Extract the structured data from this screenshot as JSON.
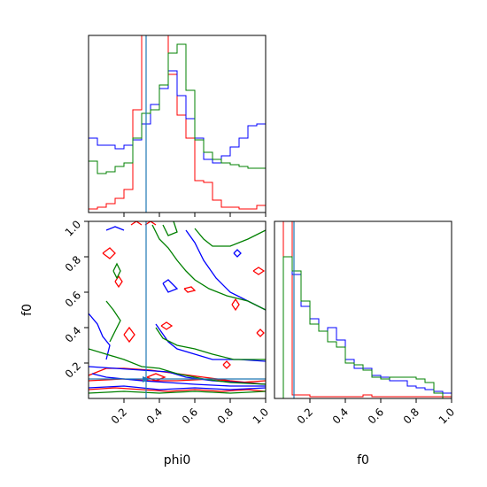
{
  "chart_data": {
    "type": "corner",
    "parameters": [
      "phi0",
      "f0"
    ],
    "axis_labels": {
      "x_bottom_left": "phi0",
      "x_bottom_right": "f0",
      "y_left": "f0"
    },
    "ranges": {
      "phi0": [
        0.0,
        1.0
      ],
      "f0": [
        0.0,
        1.0
      ]
    },
    "tick_labels": {
      "phi0": [
        "0.2",
        "0.4",
        "0.6",
        "0.8",
        "1.0"
      ],
      "f0": [
        "0.2",
        "0.4",
        "0.6",
        "0.8",
        "1.0"
      ]
    },
    "truth": {
      "phi0": 0.32,
      "f0": 0.11,
      "color": "#1f77b4"
    },
    "colors": {
      "red": "#ff0000",
      "blue": "#0000ff",
      "green": "#008000"
    },
    "hist_phi0": {
      "bins": 20,
      "ymax": 1.0,
      "series": [
        {
          "color": "red",
          "values": [
            0.02,
            0.03,
            0.05,
            0.08,
            0.13,
            0.58,
            1.05,
            1.2,
            1.05,
            0.78,
            0.55,
            0.42,
            0.18,
            0.17,
            0.07,
            0.03,
            0.03,
            0.02,
            0.02,
            0.04
          ]
        },
        {
          "color": "blue",
          "values": [
            0.42,
            0.38,
            0.38,
            0.36,
            0.38,
            0.41,
            0.5,
            0.61,
            0.7,
            0.8,
            0.66,
            0.53,
            0.42,
            0.3,
            0.28,
            0.32,
            0.37,
            0.42,
            0.49,
            0.5
          ]
        },
        {
          "color": "green",
          "values": [
            0.29,
            0.22,
            0.23,
            0.26,
            0.28,
            0.42,
            0.56,
            0.58,
            0.72,
            0.9,
            0.95,
            0.69,
            0.41,
            0.34,
            0.3,
            0.28,
            0.27,
            0.26,
            0.25,
            0.25
          ]
        }
      ]
    },
    "hist_f0": {
      "bins": 20,
      "ymax": 1.0,
      "series": [
        {
          "color": "red",
          "values": [
            0.0,
            1.25,
            0.02,
            0.02,
            0.01,
            0.01,
            0.01,
            0.01,
            0.01,
            0.01,
            0.02,
            0.01,
            0.01,
            0.01,
            0.01,
            0.01,
            0.01,
            0.01,
            0.01,
            0.01
          ]
        },
        {
          "color": "blue",
          "values": [
            0.0,
            0.8,
            0.7,
            0.52,
            0.45,
            0.38,
            0.4,
            0.33,
            0.22,
            0.17,
            0.17,
            0.13,
            0.12,
            0.1,
            0.1,
            0.07,
            0.06,
            0.05,
            0.04,
            0.03
          ]
        },
        {
          "color": "green",
          "values": [
            0.0,
            0.8,
            0.72,
            0.55,
            0.42,
            0.38,
            0.32,
            0.29,
            0.2,
            0.19,
            0.16,
            0.12,
            0.11,
            0.12,
            0.12,
            0.12,
            0.11,
            0.09,
            0.03,
            0.0
          ]
        }
      ]
    },
    "contours": [
      {
        "color": "red",
        "points": [
          [
            0.0,
            0.13
          ],
          [
            0.1,
            0.17
          ],
          [
            0.2,
            0.17
          ],
          [
            0.35,
            0.16
          ],
          [
            0.5,
            0.14
          ],
          [
            0.65,
            0.12
          ],
          [
            0.8,
            0.1
          ],
          [
            1.0,
            0.08
          ]
        ]
      },
      {
        "color": "red",
        "points": [
          [
            0.0,
            0.05
          ],
          [
            0.15,
            0.06
          ],
          [
            0.3,
            0.05
          ],
          [
            0.45,
            0.04
          ],
          [
            0.6,
            0.05
          ],
          [
            0.75,
            0.04
          ],
          [
            0.9,
            0.05
          ],
          [
            1.0,
            0.04
          ]
        ]
      },
      {
        "color": "red",
        "points": [
          [
            0.0,
            0.1
          ],
          [
            0.2,
            0.11
          ],
          [
            0.35,
            0.1
          ],
          [
            0.5,
            0.1
          ],
          [
            0.7,
            0.11
          ],
          [
            0.85,
            0.09
          ],
          [
            1.0,
            0.1
          ]
        ]
      },
      {
        "color": "red",
        "points": [
          [
            0.2,
            0.36
          ],
          [
            0.23,
            0.4
          ],
          [
            0.26,
            0.36
          ],
          [
            0.23,
            0.32
          ],
          [
            0.2,
            0.36
          ]
        ]
      },
      {
        "color": "red",
        "points": [
          [
            0.08,
            0.82
          ],
          [
            0.12,
            0.85
          ],
          [
            0.15,
            0.82
          ],
          [
            0.12,
            0.79
          ],
          [
            0.08,
            0.82
          ]
        ]
      },
      {
        "color": "red",
        "points": [
          [
            0.15,
            0.66
          ],
          [
            0.17,
            0.69
          ],
          [
            0.19,
            0.66
          ],
          [
            0.17,
            0.63
          ],
          [
            0.15,
            0.66
          ]
        ]
      },
      {
        "color": "red",
        "points": [
          [
            0.41,
            0.41
          ],
          [
            0.44,
            0.43
          ],
          [
            0.47,
            0.41
          ],
          [
            0.44,
            0.39
          ],
          [
            0.41,
            0.41
          ]
        ]
      },
      {
        "color": "red",
        "points": [
          [
            0.81,
            0.53
          ],
          [
            0.83,
            0.56
          ],
          [
            0.85,
            0.53
          ],
          [
            0.83,
            0.5
          ],
          [
            0.81,
            0.53
          ]
        ]
      },
      {
        "color": "red",
        "points": [
          [
            0.93,
            0.72
          ],
          [
            0.96,
            0.74
          ],
          [
            0.99,
            0.72
          ],
          [
            0.96,
            0.7
          ],
          [
            0.93,
            0.72
          ]
        ]
      },
      {
        "color": "red",
        "points": [
          [
            0.54,
            0.62
          ],
          [
            0.58,
            0.63
          ],
          [
            0.6,
            0.61
          ],
          [
            0.56,
            0.6
          ],
          [
            0.54,
            0.62
          ]
        ]
      },
      {
        "color": "red",
        "points": [
          [
            0.33,
            0.12
          ],
          [
            0.38,
            0.14
          ],
          [
            0.43,
            0.12
          ],
          [
            0.38,
            0.1
          ],
          [
            0.33,
            0.12
          ]
        ]
      },
      {
        "color": "red",
        "points": [
          [
            0.24,
            0.98
          ],
          [
            0.27,
            1.0
          ],
          [
            0.3,
            0.98
          ]
        ]
      },
      {
        "color": "red",
        "points": [
          [
            0.32,
            0.98
          ],
          [
            0.35,
            1.0
          ],
          [
            0.38,
            0.98
          ]
        ]
      },
      {
        "color": "red",
        "points": [
          [
            0.76,
            0.19
          ],
          [
            0.78,
            0.21
          ],
          [
            0.8,
            0.19
          ],
          [
            0.78,
            0.17
          ],
          [
            0.76,
            0.19
          ]
        ]
      },
      {
        "color": "red",
        "points": [
          [
            0.95,
            0.37
          ],
          [
            0.97,
            0.39
          ],
          [
            0.99,
            0.37
          ],
          [
            0.97,
            0.35
          ],
          [
            0.95,
            0.37
          ]
        ]
      },
      {
        "color": "blue",
        "points": [
          [
            0.0,
            0.18
          ],
          [
            0.15,
            0.17
          ],
          [
            0.3,
            0.16
          ],
          [
            0.45,
            0.15
          ],
          [
            0.55,
            0.12
          ],
          [
            0.7,
            0.1
          ],
          [
            0.85,
            0.09
          ],
          [
            1.0,
            0.08
          ]
        ]
      },
      {
        "color": "blue",
        "points": [
          [
            0.0,
            0.06
          ],
          [
            0.2,
            0.07
          ],
          [
            0.4,
            0.05
          ],
          [
            0.6,
            0.06
          ],
          [
            0.8,
            0.05
          ],
          [
            1.0,
            0.06
          ]
        ]
      },
      {
        "color": "blue",
        "points": [
          [
            0.0,
            0.48
          ],
          [
            0.05,
            0.42
          ],
          [
            0.08,
            0.35
          ],
          [
            0.12,
            0.3
          ],
          [
            0.1,
            0.22
          ]
        ]
      },
      {
        "color": "blue",
        "points": [
          [
            0.1,
            0.95
          ],
          [
            0.15,
            0.97
          ],
          [
            0.2,
            0.95
          ]
        ]
      },
      {
        "color": "blue",
        "points": [
          [
            0.55,
            0.95
          ],
          [
            0.6,
            0.88
          ],
          [
            0.65,
            0.78
          ],
          [
            0.72,
            0.68
          ],
          [
            0.8,
            0.6
          ],
          [
            0.9,
            0.55
          ],
          [
            1.0,
            0.5
          ]
        ]
      },
      {
        "color": "blue",
        "points": [
          [
            0.42,
            0.65
          ],
          [
            0.45,
            0.6
          ],
          [
            0.5,
            0.62
          ],
          [
            0.45,
            0.67
          ],
          [
            0.42,
            0.65
          ]
        ]
      },
      {
        "color": "blue",
        "points": [
          [
            0.38,
            0.42
          ],
          [
            0.45,
            0.32
          ],
          [
            0.5,
            0.28
          ],
          [
            0.6,
            0.25
          ],
          [
            0.7,
            0.22
          ],
          [
            0.85,
            0.22
          ],
          [
            1.0,
            0.21
          ]
        ]
      },
      {
        "color": "blue",
        "points": [
          [
            0.02,
            0.14
          ],
          [
            0.1,
            0.12
          ],
          [
            0.2,
            0.11
          ],
          [
            0.3,
            0.1
          ],
          [
            0.45,
            0.09
          ],
          [
            0.6,
            0.08
          ],
          [
            0.8,
            0.07
          ],
          [
            1.0,
            0.07
          ]
        ]
      },
      {
        "color": "blue",
        "points": [
          [
            0.82,
            0.82
          ],
          [
            0.84,
            0.84
          ],
          [
            0.86,
            0.82
          ],
          [
            0.84,
            0.8
          ],
          [
            0.82,
            0.82
          ]
        ]
      },
      {
        "color": "green",
        "points": [
          [
            0.0,
            0.28
          ],
          [
            0.1,
            0.25
          ],
          [
            0.2,
            0.22
          ],
          [
            0.3,
            0.18
          ],
          [
            0.4,
            0.17
          ],
          [
            0.5,
            0.14
          ],
          [
            0.65,
            0.11
          ],
          [
            0.8,
            0.09
          ],
          [
            1.0,
            0.08
          ]
        ]
      },
      {
        "color": "green",
        "points": [
          [
            0.0,
            0.03
          ],
          [
            0.2,
            0.04
          ],
          [
            0.4,
            0.03
          ],
          [
            0.6,
            0.04
          ],
          [
            0.8,
            0.03
          ],
          [
            1.0,
            0.04
          ]
        ]
      },
      {
        "color": "green",
        "points": [
          [
            0.38,
            0.4
          ],
          [
            0.42,
            0.34
          ],
          [
            0.5,
            0.3
          ],
          [
            0.6,
            0.28
          ],
          [
            0.7,
            0.25
          ],
          [
            0.82,
            0.22
          ],
          [
            1.0,
            0.22
          ]
        ]
      },
      {
        "color": "green",
        "points": [
          [
            0.36,
            0.98
          ],
          [
            0.4,
            0.9
          ],
          [
            0.45,
            0.85
          ],
          [
            0.5,
            0.78
          ],
          [
            0.55,
            0.72
          ],
          [
            0.6,
            0.67
          ],
          [
            0.68,
            0.62
          ],
          [
            0.78,
            0.58
          ],
          [
            0.9,
            0.55
          ],
          [
            1.0,
            0.5
          ]
        ]
      },
      {
        "color": "green",
        "points": [
          [
            0.6,
            0.96
          ],
          [
            0.65,
            0.9
          ],
          [
            0.7,
            0.86
          ],
          [
            0.8,
            0.86
          ],
          [
            0.9,
            0.9
          ],
          [
            1.0,
            0.95
          ]
        ]
      },
      {
        "color": "green",
        "points": [
          [
            0.12,
            0.32
          ],
          [
            0.15,
            0.38
          ],
          [
            0.18,
            0.44
          ],
          [
            0.14,
            0.5
          ],
          [
            0.1,
            0.55
          ]
        ]
      },
      {
        "color": "green",
        "points": [
          [
            0.14,
            0.72
          ],
          [
            0.16,
            0.68
          ],
          [
            0.18,
            0.72
          ],
          [
            0.16,
            0.76
          ],
          [
            0.14,
            0.72
          ]
        ]
      },
      {
        "color": "green",
        "points": [
          [
            0.42,
            0.98
          ],
          [
            0.45,
            0.92
          ],
          [
            0.5,
            0.94
          ],
          [
            0.48,
            1.0
          ]
        ]
      }
    ]
  }
}
